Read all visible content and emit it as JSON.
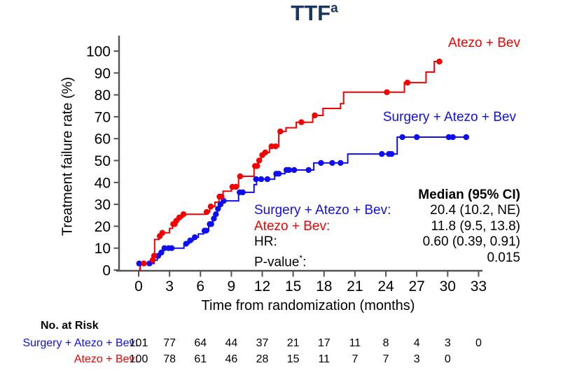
{
  "title": {
    "text": "TTF",
    "superscript": "a"
  },
  "colors": {
    "red": "#f40000",
    "blue": "#0e0ef0",
    "navy": "#17375e",
    "axis": "#545454"
  },
  "curve_labels": [
    {
      "text": "Atezo + Bev",
      "color_key": "red"
    },
    {
      "text": "Surgery + Atezo + Bev",
      "color_key": "blue"
    }
  ],
  "stats": {
    "header": "Median (95% CI)",
    "rows": [
      {
        "label": "Surgery + Atezo + Bev",
        "sup": "",
        "suffix": ":",
        "value": "20.4 (10.2, NE)",
        "color_key": "blue"
      },
      {
        "label": "Atezo + Bev",
        "sup": "",
        "suffix": ":",
        "value": "11.8 (9.5, 13.8)",
        "color_key": "red"
      },
      {
        "label": "HR",
        "sup": "",
        "suffix": ":",
        "value": "0.60 (0.39, 0.91)",
        "color_key": "black"
      },
      {
        "label": "P-value",
        "sup": "*",
        "suffix": ":",
        "value": "0.015",
        "color_key": "black"
      }
    ]
  },
  "risk_table": {
    "header": "No. at Risk",
    "months": [
      0,
      3,
      6,
      9,
      12,
      15,
      18,
      21,
      24,
      27,
      30,
      33
    ],
    "rows": [
      {
        "label": "Surgery + Atezo + Bev:",
        "color_key": "blue",
        "values": [
          101,
          77,
          64,
          44,
          37,
          21,
          17,
          11,
          8,
          4,
          3,
          0
        ]
      },
      {
        "label": "Atezo + Bev:",
        "color_key": "red",
        "values": [
          100,
          78,
          61,
          46,
          28,
          15,
          11,
          7,
          7,
          3,
          0
        ]
      }
    ]
  },
  "chart_data": {
    "type": "line",
    "subtype": "kaplan-meier-step-cumulative-incidence",
    "title": "TTF (a)",
    "xlabel": "Time from randomization (months)",
    "ylabel": "Treatment failure rate (%)",
    "xlim": [
      0,
      35
    ],
    "ylim": [
      0,
      100
    ],
    "xticks": [
      0,
      3,
      6,
      9,
      12,
      15,
      18,
      21,
      24,
      27,
      30,
      33
    ],
    "yticks": [
      0,
      10,
      20,
      30,
      40,
      50,
      60,
      70,
      80,
      90,
      100
    ],
    "grid": false,
    "legend_position": "labels-on-plot",
    "series": [
      {
        "name": "Atezo + Bev",
        "color_key": "red",
        "median_months": 11.8,
        "points": [
          [
            0,
            0
          ],
          [
            0.15,
            3
          ],
          [
            1.3,
            4.5
          ],
          [
            1.45,
            6.5
          ],
          [
            1.55,
            14
          ],
          [
            2.0,
            15.5
          ],
          [
            2.25,
            17
          ],
          [
            3.0,
            19
          ],
          [
            3.3,
            21
          ],
          [
            3.6,
            22.5
          ],
          [
            3.9,
            24
          ],
          [
            4.3,
            25.5
          ],
          [
            6.5,
            26.5
          ],
          [
            6.9,
            29
          ],
          [
            7.4,
            31
          ],
          [
            7.8,
            33.5
          ],
          [
            8.2,
            36
          ],
          [
            9.0,
            38
          ],
          [
            9.7,
            42.8
          ],
          [
            11.2,
            47.5
          ],
          [
            11.6,
            50
          ],
          [
            11.9,
            52.5
          ],
          [
            12.2,
            53.7
          ],
          [
            12.7,
            56.5
          ],
          [
            13.6,
            63.3
          ],
          [
            14.3,
            65
          ],
          [
            15.3,
            67.5
          ],
          [
            16.9,
            70.6
          ],
          [
            17.9,
            73.8
          ],
          [
            19.6,
            76
          ],
          [
            19.9,
            81.2
          ],
          [
            25.8,
            85.6
          ],
          [
            27.9,
            90.4
          ],
          [
            28.7,
            95.2
          ],
          [
            29.2,
            95.2
          ]
        ],
        "censor_marks": [
          [
            0.5,
            3
          ],
          [
            1.35,
            4.5
          ],
          [
            1.5,
            6.5
          ],
          [
            2.05,
            15.5
          ],
          [
            2.3,
            17
          ],
          [
            3.35,
            21
          ],
          [
            3.5,
            21
          ],
          [
            3.65,
            22.5
          ],
          [
            3.95,
            24
          ],
          [
            4.35,
            25.5
          ],
          [
            6.6,
            26.5
          ],
          [
            7.0,
            29
          ],
          [
            7.85,
            33.5
          ],
          [
            8.05,
            33.5
          ],
          [
            9.1,
            38
          ],
          [
            9.45,
            38
          ],
          [
            9.85,
            42.8
          ],
          [
            11.3,
            47.5
          ],
          [
            11.5,
            47.5
          ],
          [
            11.7,
            50
          ],
          [
            12.0,
            52.5
          ],
          [
            12.3,
            53.7
          ],
          [
            12.9,
            56.5
          ],
          [
            13.3,
            56.5
          ],
          [
            13.75,
            63.3
          ],
          [
            15.8,
            67.5
          ],
          [
            17.1,
            70.6
          ],
          [
            24.1,
            81.2
          ],
          [
            26.1,
            85.6
          ],
          [
            29.2,
            95.2
          ]
        ]
      },
      {
        "name": "Surgery + Atezo + Bev",
        "color_key": "blue",
        "median_months": 20.4,
        "points": [
          [
            0,
            0
          ],
          [
            0.15,
            3
          ],
          [
            1.5,
            4.5
          ],
          [
            1.8,
            6.5
          ],
          [
            2.1,
            8
          ],
          [
            2.4,
            10
          ],
          [
            4.4,
            12
          ],
          [
            4.9,
            13.5
          ],
          [
            5.3,
            15
          ],
          [
            5.8,
            16.5
          ],
          [
            6.3,
            18
          ],
          [
            6.8,
            21
          ],
          [
            7.2,
            23.5
          ],
          [
            7.45,
            25.5
          ],
          [
            7.65,
            28
          ],
          [
            7.9,
            30
          ],
          [
            8.1,
            31.6
          ],
          [
            9.7,
            35.5
          ],
          [
            11.2,
            39
          ],
          [
            11.45,
            41.5
          ],
          [
            13.2,
            44
          ],
          [
            14.2,
            45.7
          ],
          [
            17.0,
            48.9
          ],
          [
            20.3,
            53
          ],
          [
            25.1,
            60.7
          ],
          [
            32.0,
            60.7
          ]
        ],
        "censor_marks": [
          [
            0.05,
            3
          ],
          [
            1.05,
            3
          ],
          [
            1.9,
            6.5
          ],
          [
            2.2,
            8
          ],
          [
            2.5,
            10
          ],
          [
            2.9,
            10
          ],
          [
            3.2,
            10
          ],
          [
            4.6,
            12
          ],
          [
            5.0,
            13.5
          ],
          [
            5.45,
            15
          ],
          [
            6.4,
            18
          ],
          [
            6.55,
            18
          ],
          [
            6.9,
            21
          ],
          [
            7.05,
            21
          ],
          [
            7.3,
            23.5
          ],
          [
            7.5,
            25.5
          ],
          [
            7.7,
            28
          ],
          [
            7.95,
            30
          ],
          [
            8.25,
            31.6
          ],
          [
            9.8,
            35.5
          ],
          [
            10.1,
            35.5
          ],
          [
            11.4,
            41.5
          ],
          [
            11.9,
            41.5
          ],
          [
            12.5,
            41.5
          ],
          [
            13.35,
            44
          ],
          [
            13.6,
            44
          ],
          [
            14.35,
            45.7
          ],
          [
            14.6,
            45.7
          ],
          [
            15.1,
            45.7
          ],
          [
            16.5,
            45.7
          ],
          [
            17.7,
            48.9
          ],
          [
            18.8,
            48.9
          ],
          [
            19.6,
            48.9
          ],
          [
            23.6,
            53
          ],
          [
            24.3,
            53
          ],
          [
            24.55,
            53
          ],
          [
            25.6,
            60.7
          ],
          [
            27.0,
            60.7
          ],
          [
            30.1,
            60.7
          ],
          [
            30.5,
            60.7
          ],
          [
            31.8,
            60.7
          ]
        ]
      }
    ]
  }
}
